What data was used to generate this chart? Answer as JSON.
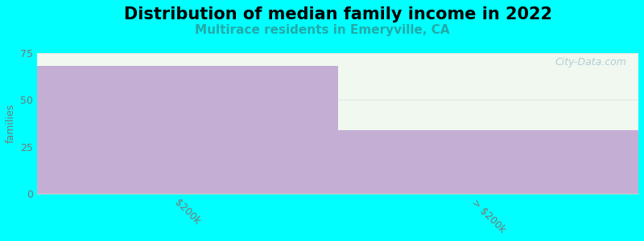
{
  "title": "Distribution of median family income in 2022",
  "subtitle": "Multirace residents in Emeryville, CA",
  "categories": [
    "$200k",
    "> $200k"
  ],
  "values": [
    68,
    34
  ],
  "bar_color": "#c4aed4",
  "background_color": "#00ffff",
  "plot_bg_color": "#f0f8f0",
  "ylabel": "families",
  "ylim": [
    0,
    75
  ],
  "yticks": [
    0,
    25,
    50,
    75
  ],
  "title_fontsize": 15,
  "subtitle_fontsize": 11,
  "subtitle_color": "#22aaaa",
  "watermark_text": "City-Data.com",
  "watermark_color": "#aec8d0",
  "tick_label_color": "#777777",
  "tick_label_rotation": -45
}
